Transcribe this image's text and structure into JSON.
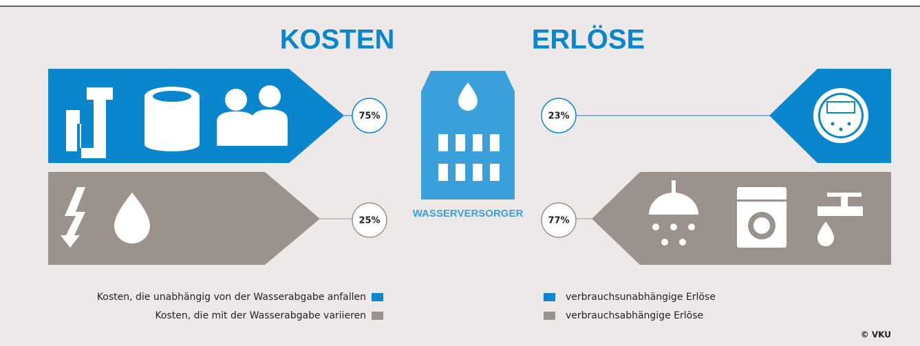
{
  "headings": {
    "costs": "KOSTEN",
    "revenues": "ERLÖSE"
  },
  "costs": {
    "fixed": {
      "share": "75%",
      "legend": "Kosten, die unabhängig von der Wasserabgabe anfallen"
    },
    "variable": {
      "share": "25%",
      "legend": "Kosten, die mit der Wasserabgabe variieren"
    }
  },
  "center": {
    "label": "WASSERVERSORGER"
  },
  "revenues": {
    "fixed": {
      "share": "23%",
      "legend": "verbrauchsunabhängige Erlöse"
    },
    "variable": {
      "share": "77%",
      "legend": "verbrauchsabhängige Erlöse"
    }
  },
  "copyright": "© VKU"
}
